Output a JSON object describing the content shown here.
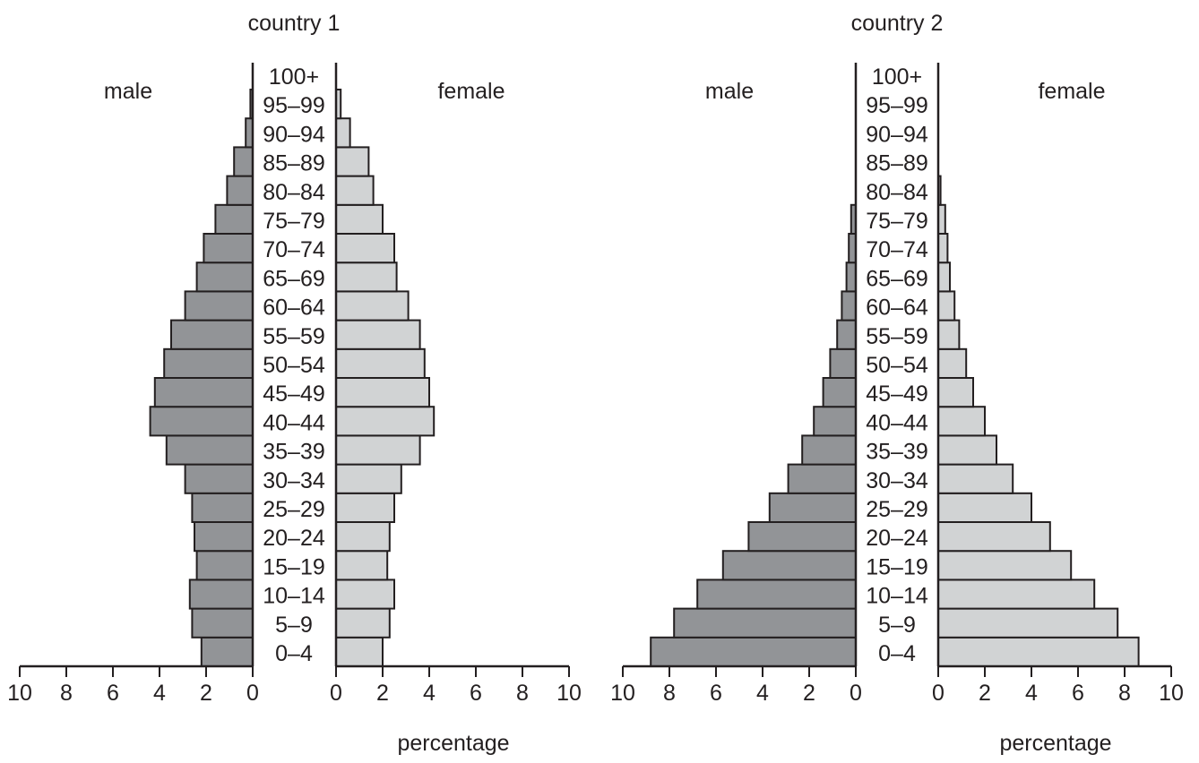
{
  "chart_data": [
    {
      "type": "bar",
      "title": "country 1",
      "male_label": "male",
      "female_label": "female",
      "xlabel": "percentage",
      "categories": [
        "0–4",
        "5–9",
        "10–14",
        "15–19",
        "20–24",
        "25–29",
        "30–34",
        "35–39",
        "40–44",
        "45–49",
        "50–54",
        "55–59",
        "60–64",
        "65–69",
        "70–74",
        "75–79",
        "80–84",
        "85–89",
        "90–94",
        "95–99",
        "100+"
      ],
      "series": [
        {
          "name": "male",
          "values": [
            2.2,
            2.6,
            2.7,
            2.4,
            2.5,
            2.6,
            2.9,
            3.7,
            4.4,
            4.2,
            3.8,
            3.5,
            2.9,
            2.4,
            2.1,
            1.6,
            1.1,
            0.8,
            0.3,
            0.1,
            0
          ]
        },
        {
          "name": "female",
          "values": [
            2.0,
            2.3,
            2.5,
            2.2,
            2.3,
            2.5,
            2.8,
            3.6,
            4.2,
            4.0,
            3.8,
            3.6,
            3.1,
            2.6,
            2.5,
            2.0,
            1.6,
            1.4,
            0.6,
            0.2,
            0
          ]
        }
      ],
      "xlim": [
        0,
        10
      ],
      "xticks": [
        "0",
        "2",
        "4",
        "6",
        "8",
        "10"
      ]
    },
    {
      "type": "bar",
      "title": "country 2",
      "male_label": "male",
      "female_label": "female",
      "xlabel": "percentage",
      "categories": [
        "0–4",
        "5–9",
        "10–14",
        "15–19",
        "20–24",
        "25–29",
        "30–34",
        "35–39",
        "40–44",
        "45–49",
        "50–54",
        "55–59",
        "60–64",
        "65–69",
        "70–74",
        "75–79",
        "80–84",
        "85–89",
        "90–94",
        "95–99",
        "100+"
      ],
      "series": [
        {
          "name": "male",
          "values": [
            8.8,
            7.8,
            6.8,
            5.7,
            4.6,
            3.7,
            2.9,
            2.3,
            1.8,
            1.4,
            1.1,
            0.8,
            0.6,
            0.4,
            0.3,
            0.2,
            0,
            0,
            0,
            0,
            0
          ]
        },
        {
          "name": "female",
          "values": [
            8.6,
            7.7,
            6.7,
            5.7,
            4.8,
            4.0,
            3.2,
            2.5,
            2.0,
            1.5,
            1.2,
            0.9,
            0.7,
            0.5,
            0.4,
            0.3,
            0.1,
            0,
            0,
            0,
            0
          ]
        }
      ],
      "xlim": [
        0,
        10
      ],
      "xticks": [
        "0",
        "2",
        "4",
        "6",
        "8",
        "10"
      ]
    }
  ],
  "colors": {
    "male": "#929497",
    "female": "#d1d3d4",
    "stroke": "#231f20"
  }
}
